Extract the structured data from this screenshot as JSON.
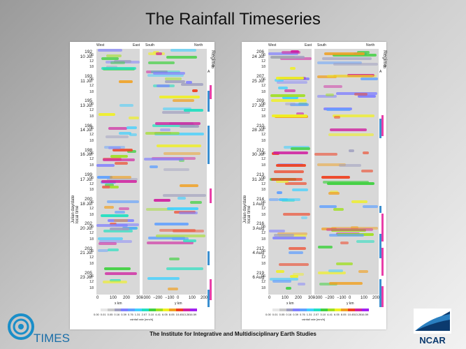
{
  "slide": {
    "title": "The Rainfall Timeseries",
    "footer": "The Institute for Integrative and Multidisciplinary Earth Studies",
    "logo_left_text": "TIMES",
    "logo_right_text": "NCAR"
  },
  "panels": [
    {
      "header_left": "West",
      "header_mid": "East",
      "header_mid2": "South",
      "header_right": "North",
      "vaxis": "Julian day/date\nlocal time",
      "regime_label": "Regime",
      "regime_a": "A",
      "regime_b": "B",
      "days": [
        {
          "jd": "192",
          "date": "10 Jul"
        },
        {
          "jd": "193",
          "date": "11 Jul"
        },
        {
          "jd": "195",
          "date": "13 Jul"
        },
        {
          "jd": "196",
          "date": "14 Jul"
        },
        {
          "jd": "198",
          "date": "16 Jul"
        },
        {
          "jd": "199",
          "date": "17 Jul"
        },
        {
          "jd": "200",
          "date": "18 Jul"
        },
        {
          "jd": "202",
          "date": "20 Jul"
        },
        {
          "jd": "203",
          "date": "21 Jul"
        },
        {
          "jd": "205",
          "date": "23 Jul"
        }
      ],
      "x_ticks_left": [
        "0",
        "100",
        "200",
        "300"
      ],
      "x_ticks_right": [
        "−300",
        "−200",
        "−100",
        "0",
        "100",
        "200"
      ],
      "x_label_left": "x km",
      "x_label_right": "y km"
    },
    {
      "header_left": "West",
      "header_mid": "East",
      "header_mid2": "South",
      "header_right": "North",
      "vaxis": "Julian day/date\nlocal time",
      "regime_label": "Regime",
      "regime_a": "A",
      "regime_b": "B",
      "days": [
        {
          "jd": "206",
          "date": "24 Jul"
        },
        {
          "jd": "207",
          "date": "25 Jul"
        },
        {
          "jd": "209",
          "date": "27 Jul"
        },
        {
          "jd": "210",
          "date": "28 Jul"
        },
        {
          "jd": "212",
          "date": "30 Jul"
        },
        {
          "jd": "213",
          "date": "31 Jul"
        },
        {
          "jd": "214",
          "date": "1 Aug"
        },
        {
          "jd": "216",
          "date": "3 Aug"
        },
        {
          "jd": "217",
          "date": "4 Aug"
        },
        {
          "jd": "219",
          "date": "6 Aug"
        }
      ],
      "x_ticks_left": [
        "0",
        "100",
        "200",
        "300"
      ],
      "x_ticks_right": [
        "−300",
        "−200",
        "−100",
        "0",
        "100",
        "200"
      ],
      "x_label_left": "x km",
      "x_label_right": "y km"
    }
  ],
  "hours": [
    "06",
    "12",
    "18"
  ],
  "colorbar": {
    "labels": [
      "0.00",
      "0.01",
      "0.05",
      "0.16",
      "0.39",
      "0.76",
      "1.31",
      "2.07",
      "3.10",
      "4.41",
      "6.05",
      "8.05",
      "10.45",
      "13.28",
      "16.59"
    ],
    "title": "rainfall rate [mm/h]",
    "colors": [
      "#ffffff",
      "#e6e6e6",
      "#c9c9c9",
      "#9f9fbf",
      "#7f7fff",
      "#5fa0ff",
      "#3fd0ff",
      "#20e0c0",
      "#40d040",
      "#a0e020",
      "#f0f020",
      "#f0a020",
      "#f04020",
      "#d020a0",
      "#a020f0"
    ]
  },
  "regime_colors": {
    "a": "#e83ea8",
    "b": "#3a8fd0"
  }
}
